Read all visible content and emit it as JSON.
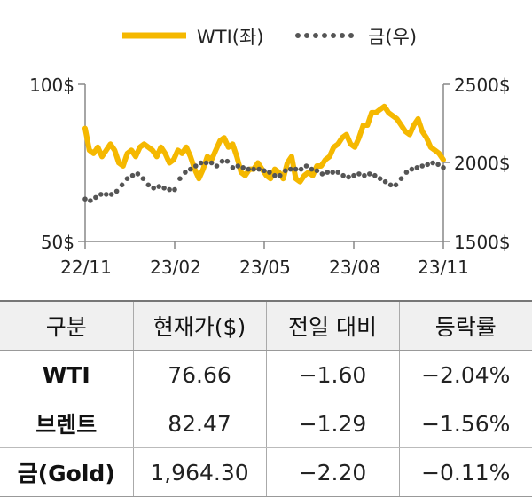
{
  "chart_data": {
    "type": "line",
    "legend": {
      "placement": "top-center",
      "items": [
        "WTI(좌)",
        "금(우)"
      ]
    },
    "x_ticks": [
      "22/11",
      "23/02",
      "23/05",
      "23/08",
      "23/11"
    ],
    "y_left": {
      "min": 50,
      "max": 100,
      "ticks": [
        "100$",
        "50$"
      ]
    },
    "y_right": {
      "min": 1500,
      "max": 2500,
      "ticks": [
        "2500$",
        "2000$",
        "1500$"
      ]
    },
    "series": [
      {
        "name": "WTI(좌)",
        "axis": "left",
        "color": "#f5b800",
        "style": "solid",
        "values": [
          86,
          79,
          78,
          80,
          77,
          79,
          81,
          79,
          75,
          74,
          78,
          79,
          77,
          80,
          81,
          80,
          79,
          77,
          80,
          78,
          75,
          76,
          79,
          78,
          80,
          77,
          73,
          70,
          73,
          77,
          76,
          79,
          82,
          83,
          80,
          81,
          77,
          72,
          71,
          73,
          73,
          75,
          73,
          71,
          70,
          73,
          72,
          70,
          75,
          77,
          70,
          69,
          71,
          72,
          71,
          74,
          74,
          76,
          77,
          80,
          81,
          83,
          84,
          81,
          80,
          83,
          87,
          87,
          91,
          91,
          92,
          93,
          91,
          90,
          89,
          87,
          85,
          84,
          87,
          89,
          85,
          83,
          80,
          79,
          78,
          76
        ]
      },
      {
        "name": "금(우)",
        "axis": "right",
        "color": "#555555",
        "style": "dotted",
        "values": [
          1770,
          1760,
          1780,
          1800,
          1800,
          1800,
          1820,
          1860,
          1900,
          1920,
          1930,
          1900,
          1860,
          1840,
          1850,
          1840,
          1830,
          1830,
          1900,
          1940,
          1960,
          1980,
          2000,
          2000,
          2000,
          1980,
          2010,
          2010,
          1970,
          1980,
          1970,
          1960,
          1960,
          1960,
          1950,
          1940,
          1920,
          1920,
          1950,
          1960,
          1960,
          1960,
          1980,
          1960,
          1950,
          1930,
          1940,
          1940,
          1940,
          1920,
          1910,
          1920,
          1930,
          1920,
          1930,
          1920,
          1900,
          1880,
          1860,
          1860,
          1900,
          1940,
          1960,
          1970,
          1980,
          1990,
          2000,
          1990,
          1970
        ]
      }
    ]
  },
  "table": {
    "headers": [
      "구분",
      "현재가($)",
      "전일 대비",
      "등락률"
    ],
    "rows": [
      [
        "WTI",
        "76.66",
        "−1.60",
        "−2.04%"
      ],
      [
        "브렌트",
        "82.47",
        "−1.29",
        "−1.56%"
      ],
      [
        "금(Gold)",
        "1,964.30",
        "−2.20",
        "−0.11%"
      ]
    ]
  }
}
